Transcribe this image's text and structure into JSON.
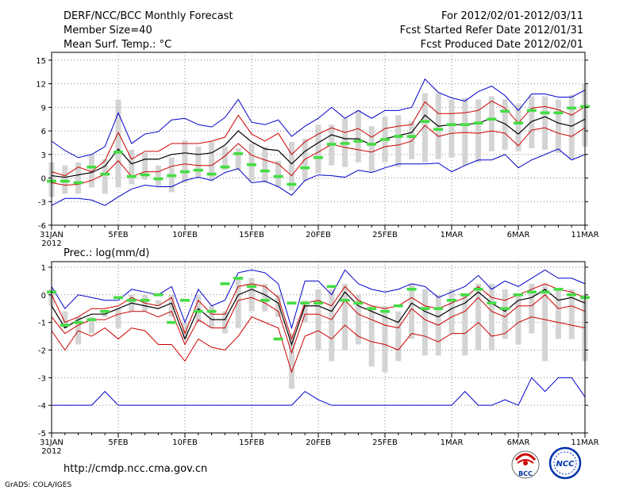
{
  "header": {
    "title": "DERF/NCC/BCC Monthly Forecast",
    "member_size": "Member Size=40",
    "variable": "Mean Surf. Temp.: °C",
    "period": "For 2012/02/01-2012/03/11",
    "started": "Fcst Started Refer Date 2012/01/31",
    "produced": "Fcst Produced Date 2012/02/01"
  },
  "footer": {
    "url": "http://cmdp.ncc.cma.gov.cn",
    "grads": "GrADS: COLA/IGES",
    "logo_bcc": "BCC",
    "logo_ncc": "NCC"
  },
  "colors": {
    "box": "#d4d4d4",
    "outer": "#0000cc",
    "inner": "#cc0000",
    "mean": "#000000",
    "median": "#44dd44",
    "grid": "#888888"
  },
  "chart_data": [
    {
      "type": "line",
      "title": "Mean Surf. Temp.: °C",
      "ylim": [
        -6,
        16
      ],
      "yticks": [
        -6,
        -3,
        0,
        3,
        6,
        9,
        12,
        15
      ],
      "xlim": [
        0,
        40
      ],
      "xticks": [
        {
          "x": 0,
          "label": "31JAN",
          "sub": "2012"
        },
        {
          "x": 5,
          "label": "5FEB"
        },
        {
          "x": 10,
          "label": "10FEB"
        },
        {
          "x": 15,
          "label": "15FEB"
        },
        {
          "x": 20,
          "label": "20FEB"
        },
        {
          "x": 25,
          "label": "25FEB"
        },
        {
          "x": 30,
          "label": "1MAR"
        },
        {
          "x": 35,
          "label": "6MAR"
        },
        {
          "x": 40,
          "label": "11MAR"
        }
      ],
      "series": [
        {
          "name": "max",
          "values": [
            4.7,
            3.5,
            2.6,
            3.0,
            4.0,
            8.3,
            4.4,
            5.6,
            5.9,
            7.4,
            7.6,
            6.8,
            6.5,
            7.7,
            10.0,
            7.1,
            6.8,
            7.4,
            5.3,
            6.6,
            7.6,
            9.0,
            7.6,
            8.6,
            7.6,
            8.6,
            8.6,
            9.0,
            12.6,
            10.9,
            10.2,
            9.8,
            11.0,
            11.7,
            10.5,
            8.6,
            10.7,
            10.7,
            10.3,
            10.3,
            11.2
          ]
        },
        {
          "name": "upper",
          "values": [
            0.8,
            0.3,
            1.4,
            0.8,
            2.2,
            5.8,
            2.4,
            3.4,
            3.4,
            4.4,
            4.4,
            4.4,
            4.7,
            5.2,
            8.0,
            5.6,
            4.7,
            5.7,
            3.0,
            4.6,
            5.6,
            6.4,
            5.8,
            6.3,
            5.2,
            6.3,
            6.6,
            6.8,
            9.7,
            8.2,
            8.2,
            8.3,
            8.6,
            9.8,
            8.9,
            7.0,
            8.9,
            9.1,
            8.7,
            8.0,
            9.1
          ]
        },
        {
          "name": "mean",
          "values": [
            0.3,
            0.1,
            0.4,
            0.7,
            1.5,
            3.7,
            1.8,
            2.4,
            2.4,
            3.0,
            3.2,
            3.0,
            3.2,
            4.2,
            6.0,
            4.6,
            3.7,
            3.5,
            1.8,
            3.4,
            4.5,
            5.5,
            5.0,
            5.0,
            4.2,
            5.0,
            5.4,
            5.8,
            8.0,
            6.6,
            6.8,
            6.8,
            7.0,
            7.6,
            6.9,
            5.6,
            7.2,
            7.8,
            7.0,
            6.6,
            7.5
          ]
        },
        {
          "name": "lower",
          "values": [
            -0.6,
            -0.9,
            -0.8,
            -0.3,
            0.5,
            2.2,
            0.2,
            0.8,
            0.8,
            1.5,
            1.8,
            1.6,
            1.6,
            2.8,
            4.4,
            2.9,
            2.3,
            1.8,
            0.3,
            2.4,
            3.3,
            4.3,
            3.9,
            3.6,
            3.3,
            4.0,
            4.2,
            4.7,
            6.7,
            5.3,
            5.7,
            5.8,
            5.7,
            6.0,
            5.7,
            4.1,
            6.1,
            6.4,
            5.7,
            5.3,
            6.4
          ]
        },
        {
          "name": "min",
          "values": [
            -3.5,
            -2.6,
            -2.6,
            -2.8,
            -3.5,
            -2.4,
            -1.4,
            -0.9,
            -1.1,
            -1.1,
            -0.3,
            0.1,
            -0.3,
            0.7,
            1.2,
            -0.6,
            -0.4,
            -1.1,
            -2.2,
            -0.3,
            0.4,
            0.3,
            0.1,
            1.0,
            0.7,
            1.3,
            1.8,
            1.8,
            1.8,
            1.9,
            0.8,
            1.6,
            2.3,
            2.3,
            3.0,
            1.3,
            2.3,
            3.0,
            3.7,
            2.3,
            3.0
          ]
        },
        {
          "name": "box_low",
          "values": [
            -2.4,
            -2.0,
            -2.0,
            -1.2,
            -2.0,
            -1.2,
            -0.8,
            -0.2,
            -1.0,
            -1.8,
            -0.6,
            0.0,
            -0.4,
            1.0,
            1.0,
            -0.4,
            -0.6,
            -1.2,
            -1.6,
            -0.4,
            0.6,
            1.6,
            1.4,
            2.0,
            0.8,
            2.0,
            1.4,
            2.4,
            2.0,
            2.4,
            2.6,
            1.6,
            2.0,
            3.4,
            3.6,
            3.4,
            3.8,
            3.6,
            3.2,
            2.4,
            4.0
          ]
        },
        {
          "name": "box_high",
          "values": [
            2.0,
            1.6,
            2.0,
            3.0,
            2.4,
            10.0,
            3.6,
            3.2,
            1.6,
            2.6,
            4.8,
            4.0,
            4.6,
            4.0,
            3.8,
            4.4,
            4.0,
            2.2,
            4.6,
            5.0,
            6.8,
            6.8,
            7.6,
            8.6,
            6.6,
            7.8,
            8.0,
            7.2,
            10.8,
            10.8,
            10.0,
            10.2,
            10.0,
            10.4,
            10.0,
            9.4,
            10.4,
            10.4,
            10.0,
            10.6,
            12.0
          ]
        },
        {
          "name": "median",
          "values": [
            -0.4,
            -0.4,
            -0.6,
            1.4,
            0.5,
            3.3,
            0.2,
            0.4,
            -0.1,
            0.3,
            0.8,
            1.0,
            0.5,
            1.4,
            3.1,
            1.7,
            0.9,
            0.2,
            -0.8,
            1.3,
            2.6,
            4.3,
            4.4,
            4.7,
            4.3,
            4.9,
            5.3,
            5.3,
            7.2,
            6.2,
            6.8,
            6.8,
            7.0,
            7.5,
            8.5,
            7.0,
            8.6,
            8.3,
            8.3,
            8.9,
            9.1
          ]
        }
      ]
    },
    {
      "type": "line",
      "title": "Prec.: log(mm/d)",
      "ylim": [
        -5,
        1.2
      ],
      "yticks": [
        -5,
        -4,
        -3,
        -2,
        -1,
        0,
        1
      ],
      "xlim": [
        0,
        40
      ],
      "xticks": [
        {
          "x": 0,
          "label": "31JAN",
          "sub": "2012"
        },
        {
          "x": 5,
          "label": "5FEB"
        },
        {
          "x": 10,
          "label": "10FEB"
        },
        {
          "x": 15,
          "label": "15FEB"
        },
        {
          "x": 20,
          "label": "20FEB"
        },
        {
          "x": 25,
          "label": "25FEB"
        },
        {
          "x": 30,
          "label": "1MAR"
        },
        {
          "x": 35,
          "label": "6MAR"
        },
        {
          "x": 40,
          "label": "11MAR"
        }
      ],
      "series": [
        {
          "name": "max",
          "values": [
            0.3,
            -0.5,
            0.0,
            -0.1,
            -0.2,
            -0.2,
            0.2,
            0.1,
            0.0,
            0.3,
            -1.0,
            0.2,
            -0.4,
            -0.2,
            0.8,
            0.9,
            0.8,
            0.4,
            -1.2,
            0.5,
            0.5,
            0.0,
            0.9,
            0.4,
            0.2,
            0.1,
            0.2,
            0.4,
            0.3,
            -0.1,
            0.1,
            0.3,
            0.7,
            0.2,
            0.5,
            0.3,
            0.6,
            0.9,
            0.6,
            0.6,
            0.4
          ]
        },
        {
          "name": "upper",
          "values": [
            0.0,
            -1.0,
            -0.8,
            -0.5,
            -0.5,
            -0.4,
            -0.1,
            -0.3,
            -0.4,
            -0.1,
            -1.4,
            -0.2,
            -0.7,
            -0.7,
            0.3,
            0.4,
            0.3,
            -0.1,
            -1.6,
            -0.3,
            -0.2,
            -0.4,
            0.3,
            -0.2,
            -0.4,
            -0.5,
            -0.4,
            -0.1,
            -0.4,
            -0.5,
            -0.3,
            -0.1,
            0.3,
            -0.1,
            -0.2,
            0.0,
            0.2,
            0.4,
            0.2,
            0.1,
            -0.1
          ]
        },
        {
          "name": "mean",
          "values": [
            -0.4,
            -1.2,
            -0.9,
            -0.7,
            -0.7,
            -0.5,
            -0.3,
            -0.4,
            -0.5,
            -0.3,
            -1.6,
            -0.5,
            -0.9,
            -0.9,
            0.0,
            0.2,
            0.0,
            -0.3,
            -1.8,
            -0.4,
            -0.4,
            -0.6,
            0.1,
            -0.4,
            -0.6,
            -0.8,
            -1.0,
            -0.3,
            -0.6,
            -0.8,
            -0.5,
            -0.3,
            0.1,
            -0.3,
            -0.6,
            -0.2,
            -0.1,
            0.2,
            -0.2,
            -0.1,
            -0.3
          ]
        },
        {
          "name": "lower",
          "values": [
            -0.8,
            -1.4,
            -1.1,
            -0.9,
            -0.9,
            -0.7,
            -0.6,
            -0.6,
            -0.8,
            -0.6,
            -1.8,
            -0.9,
            -1.2,
            -1.2,
            -0.2,
            -0.1,
            -0.3,
            -0.6,
            -2.1,
            -0.7,
            -0.7,
            -0.9,
            -0.2,
            -0.7,
            -0.9,
            -1.1,
            -1.2,
            -0.5,
            -0.9,
            -1.1,
            -0.8,
            -0.6,
            -0.1,
            -0.6,
            -0.8,
            -0.4,
            -0.4,
            0.0,
            -0.5,
            -0.4,
            -0.6
          ]
        },
        {
          "name": "bottom",
          "values": [
            -1.3,
            -2.0,
            -1.3,
            -1.5,
            -1.2,
            -1.6,
            -1.2,
            -1.3,
            -1.8,
            -1.8,
            -2.4,
            -1.6,
            -1.9,
            -2.0,
            -1.5,
            -0.8,
            -1.0,
            -1.2,
            -2.8,
            -1.5,
            -1.3,
            -1.6,
            -1.1,
            -1.5,
            -1.7,
            -1.8,
            -2.0,
            -1.4,
            -1.5,
            -1.7,
            -1.4,
            -1.4,
            -1.0,
            -1.5,
            -1.4,
            -1.0,
            -0.8,
            -0.9,
            -1.0,
            -1.1,
            -1.2
          ]
        },
        {
          "name": "min",
          "values": [
            -4.0,
            -4.0,
            -4.0,
            -4.0,
            -3.5,
            -4.0,
            -4.0,
            -4.0,
            -4.0,
            -4.0,
            -4.0,
            -4.0,
            -4.0,
            -4.0,
            -4.0,
            -4.0,
            -4.0,
            -4.0,
            -4.0,
            -3.5,
            -3.8,
            -4.0,
            -4.0,
            -4.0,
            -4.0,
            -4.0,
            -4.0,
            -4.0,
            -4.0,
            -4.0,
            -4.0,
            -3.5,
            -4.0,
            -4.0,
            -3.8,
            -4.0,
            -3.0,
            -3.5,
            -3.0,
            -3.0,
            -3.7
          ]
        },
        {
          "name": "box_low",
          "values": [
            -0.4,
            -1.2,
            -1.8,
            -1.4,
            -0.8,
            -1.2,
            -0.6,
            -0.6,
            -0.4,
            -0.8,
            -1.6,
            -1.0,
            -1.2,
            -1.4,
            -1.2,
            -0.6,
            -0.6,
            -0.8,
            -3.4,
            -1.0,
            -2.0,
            -2.4,
            -2.0,
            -1.8,
            -2.6,
            -2.8,
            -2.4,
            -1.6,
            -2.2,
            -2.2,
            -1.4,
            -2.2,
            -2.0,
            -2.0,
            -1.6,
            -1.8,
            -1.4,
            -2.4,
            -1.6,
            -1.6,
            -2.4
          ]
        },
        {
          "name": "box_high",
          "values": [
            0.2,
            -0.6,
            -0.8,
            -0.8,
            -0.6,
            -0.5,
            0.0,
            0.0,
            -0.2,
            0.0,
            -1.0,
            0.0,
            -0.4,
            -0.6,
            0.6,
            0.6,
            0.4,
            0.0,
            -1.4,
            -0.2,
            0.2,
            0.2,
            0.4,
            0.0,
            -0.4,
            -0.4,
            -0.6,
            0.4,
            0.2,
            0.0,
            0.2,
            0.0,
            0.4,
            0.4,
            0.2,
            0.0,
            0.4,
            0.4,
            0.2,
            0.2,
            0.0
          ]
        },
        {
          "name": "median",
          "values": [
            0.1,
            -1.1,
            -1.0,
            -0.9,
            -0.6,
            -0.1,
            -0.2,
            -0.2,
            0.0,
            -1.0,
            -0.2,
            -0.6,
            -0.6,
            0.4,
            0.6,
            0.3,
            -0.2,
            -1.6,
            -0.3,
            -0.3,
            -0.3,
            0.3,
            -0.2,
            -0.3,
            -0.5,
            -0.6,
            -0.4,
            0.2,
            -0.5,
            -0.5,
            -0.2,
            0.0,
            0.2,
            -0.3,
            -0.5,
            0.0,
            0.1,
            0.1,
            0.2,
            0.0,
            -0.1
          ]
        }
      ]
    }
  ]
}
